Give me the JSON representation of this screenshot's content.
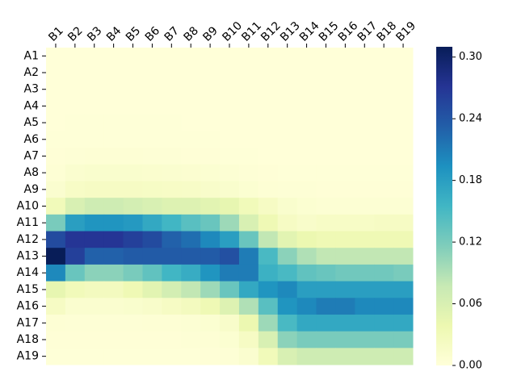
{
  "chart_data": {
    "type": "heatmap",
    "x_categories": [
      "B1",
      "B2",
      "B3",
      "B4",
      "B5",
      "B6",
      "B7",
      "B8",
      "B9",
      "B10",
      "B11",
      "B12",
      "B13",
      "B14",
      "B15",
      "B16",
      "B17",
      "B18",
      "B19"
    ],
    "y_categories": [
      "A1",
      "A2",
      "A3",
      "A4",
      "A5",
      "A6",
      "A7",
      "A8",
      "A9",
      "A10",
      "A11",
      "A12",
      "A13",
      "A14",
      "A15",
      "A16",
      "A17",
      "A18",
      "A19"
    ],
    "values": [
      [
        0.001,
        0.001,
        0.001,
        0.001,
        0.001,
        0.001,
        0.001,
        0.001,
        0.001,
        0.001,
        0.001,
        0.001,
        0.001,
        0.001,
        0.001,
        0.001,
        0.001,
        0.001,
        0.001
      ],
      [
        0.001,
        0.001,
        0.001,
        0.001,
        0.001,
        0.001,
        0.001,
        0.001,
        0.001,
        0.001,
        0.001,
        0.001,
        0.001,
        0.001,
        0.001,
        0.001,
        0.001,
        0.001,
        0.001
      ],
      [
        0.001,
        0.001,
        0.001,
        0.001,
        0.001,
        0.001,
        0.001,
        0.001,
        0.001,
        0.001,
        0.001,
        0.001,
        0.001,
        0.001,
        0.001,
        0.001,
        0.001,
        0.001,
        0.001
      ],
      [
        0.001,
        0.001,
        0.001,
        0.001,
        0.001,
        0.001,
        0.001,
        0.001,
        0.001,
        0.001,
        0.001,
        0.001,
        0.001,
        0.001,
        0.001,
        0.001,
        0.001,
        0.001,
        0.001
      ],
      [
        0.001,
        0.002,
        0.002,
        0.002,
        0.002,
        0.002,
        0.002,
        0.001,
        0.001,
        0.001,
        0.001,
        0.001,
        0.001,
        0.001,
        0.001,
        0.001,
        0.001,
        0.001,
        0.001
      ],
      [
        0.002,
        0.002,
        0.002,
        0.002,
        0.002,
        0.002,
        0.002,
        0.002,
        0.002,
        0.001,
        0.001,
        0.001,
        0.001,
        0.001,
        0.001,
        0.001,
        0.001,
        0.001,
        0.001
      ],
      [
        0.003,
        0.004,
        0.005,
        0.005,
        0.005,
        0.004,
        0.004,
        0.003,
        0.003,
        0.002,
        0.002,
        0.001,
        0.001,
        0.001,
        0.001,
        0.001,
        0.001,
        0.001,
        0.001
      ],
      [
        0.005,
        0.01,
        0.012,
        0.012,
        0.012,
        0.011,
        0.01,
        0.009,
        0.008,
        0.006,
        0.004,
        0.003,
        0.002,
        0.002,
        0.002,
        0.002,
        0.002,
        0.002,
        0.002
      ],
      [
        0.01,
        0.018,
        0.02,
        0.02,
        0.02,
        0.019,
        0.018,
        0.017,
        0.015,
        0.012,
        0.008,
        0.005,
        0.004,
        0.004,
        0.003,
        0.003,
        0.003,
        0.003,
        0.003
      ],
      [
        0.03,
        0.06,
        0.07,
        0.07,
        0.065,
        0.06,
        0.055,
        0.055,
        0.05,
        0.045,
        0.03,
        0.02,
        0.012,
        0.008,
        0.006,
        0.006,
        0.006,
        0.006,
        0.006
      ],
      [
        0.12,
        0.18,
        0.19,
        0.19,
        0.185,
        0.17,
        0.155,
        0.14,
        0.13,
        0.1,
        0.06,
        0.035,
        0.02,
        0.015,
        0.018,
        0.018,
        0.018,
        0.02,
        0.02
      ],
      [
        0.25,
        0.27,
        0.27,
        0.27,
        0.26,
        0.25,
        0.23,
        0.22,
        0.2,
        0.18,
        0.13,
        0.08,
        0.05,
        0.04,
        0.035,
        0.035,
        0.035,
        0.035,
        0.035
      ],
      [
        0.31,
        0.26,
        0.23,
        0.23,
        0.235,
        0.235,
        0.235,
        0.235,
        0.235,
        0.245,
        0.21,
        0.15,
        0.11,
        0.09,
        0.08,
        0.08,
        0.08,
        0.08,
        0.08
      ],
      [
        0.2,
        0.13,
        0.11,
        0.11,
        0.12,
        0.135,
        0.155,
        0.165,
        0.19,
        0.21,
        0.21,
        0.16,
        0.15,
        0.135,
        0.13,
        0.125,
        0.125,
        0.125,
        0.12
      ],
      [
        0.045,
        0.03,
        0.025,
        0.025,
        0.035,
        0.05,
        0.065,
        0.08,
        0.1,
        0.13,
        0.17,
        0.19,
        0.2,
        0.18,
        0.18,
        0.18,
        0.18,
        0.18,
        0.18
      ],
      [
        0.02,
        0.01,
        0.01,
        0.01,
        0.012,
        0.015,
        0.02,
        0.025,
        0.035,
        0.055,
        0.09,
        0.14,
        0.19,
        0.2,
        0.21,
        0.21,
        0.2,
        0.2,
        0.2
      ],
      [
        0.005,
        0.004,
        0.004,
        0.004,
        0.004,
        0.005,
        0.005,
        0.006,
        0.008,
        0.015,
        0.04,
        0.1,
        0.15,
        0.17,
        0.17,
        0.17,
        0.17,
        0.17,
        0.17
      ],
      [
        0.003,
        0.003,
        0.003,
        0.003,
        0.003,
        0.003,
        0.003,
        0.004,
        0.005,
        0.008,
        0.02,
        0.06,
        0.11,
        0.12,
        0.12,
        0.12,
        0.12,
        0.12,
        0.12
      ],
      [
        0.002,
        0.002,
        0.002,
        0.002,
        0.002,
        0.002,
        0.002,
        0.002,
        0.003,
        0.004,
        0.01,
        0.03,
        0.06,
        0.07,
        0.07,
        0.07,
        0.07,
        0.07,
        0.07
      ]
    ],
    "colormap": [
      "#ffffd9",
      "#edf8b1",
      "#c7e9b4",
      "#7fcdbb",
      "#41b6c4",
      "#1d91c0",
      "#225ea8",
      "#253494",
      "#081d58"
    ],
    "clim": [
      0,
      0.31
    ],
    "cticks": [
      {
        "value": 0,
        "label": "0.00"
      },
      0.06,
      0.12,
      0.18,
      0.24,
      {
        "value": 0.3,
        "label": "0.30"
      }
    ]
  }
}
